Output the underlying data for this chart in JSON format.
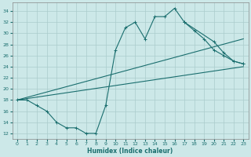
{
  "xlabel": "Humidex (Indice chaleur)",
  "bg_color": "#cce8e8",
  "grid_color": "#aacccc",
  "line_color": "#1a6e6e",
  "xlim": [
    -0.5,
    23.5
  ],
  "ylim": [
    11,
    35.5
  ],
  "xticks": [
    0,
    1,
    2,
    3,
    4,
    5,
    6,
    7,
    8,
    9,
    10,
    11,
    12,
    13,
    14,
    15,
    16,
    17,
    18,
    19,
    20,
    21,
    22,
    23
  ],
  "yticks": [
    12,
    14,
    16,
    18,
    20,
    22,
    24,
    26,
    28,
    30,
    32,
    34
  ],
  "line1_x": [
    0,
    1,
    2,
    3,
    4,
    5,
    6,
    7,
    8,
    9,
    10,
    11,
    12,
    13,
    14,
    15,
    16,
    17,
    18,
    19,
    20,
    21,
    22,
    23
  ],
  "line1_y": [
    18,
    18,
    17,
    16,
    14,
    13,
    13,
    12,
    12,
    17,
    27,
    31,
    32,
    29,
    33,
    33,
    34.5,
    32,
    30.5,
    29,
    27,
    26,
    25,
    24.5
  ],
  "line2_x": [
    0,
    23
  ],
  "line2_y": [
    18,
    29
  ],
  "line3_x": [
    0,
    23
  ],
  "line3_y": [
    18,
    24
  ],
  "line4_x": [
    17,
    20,
    21,
    22,
    23
  ],
  "line4_y": [
    32,
    28.5,
    26.5,
    25,
    24.5
  ]
}
